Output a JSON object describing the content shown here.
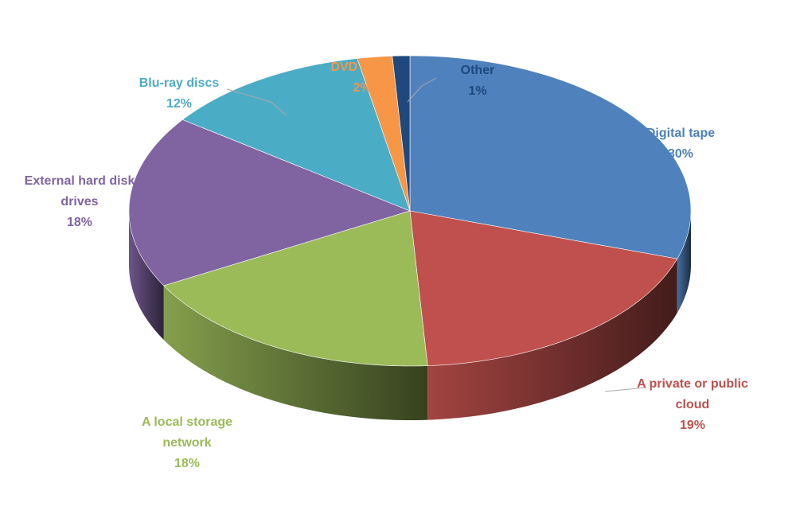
{
  "chart_data": {
    "type": "pie",
    "categories": [
      "Digital tape",
      "A private or public cloud",
      "A local storage network",
      "External hard disk drives",
      "Blu-ray discs",
      "DVD discs",
      "Other"
    ],
    "values": [
      30,
      19,
      18,
      18,
      12,
      2,
      1
    ],
    "value_labels": [
      "30%",
      "19%",
      "18%",
      "18%",
      "12%",
      "2%",
      "1%"
    ],
    "colors": [
      "#4f81bd",
      "#c0504d",
      "#9bbb59",
      "#8064a2",
      "#4bacc6",
      "#f79646",
      "#1f497d"
    ]
  }
}
